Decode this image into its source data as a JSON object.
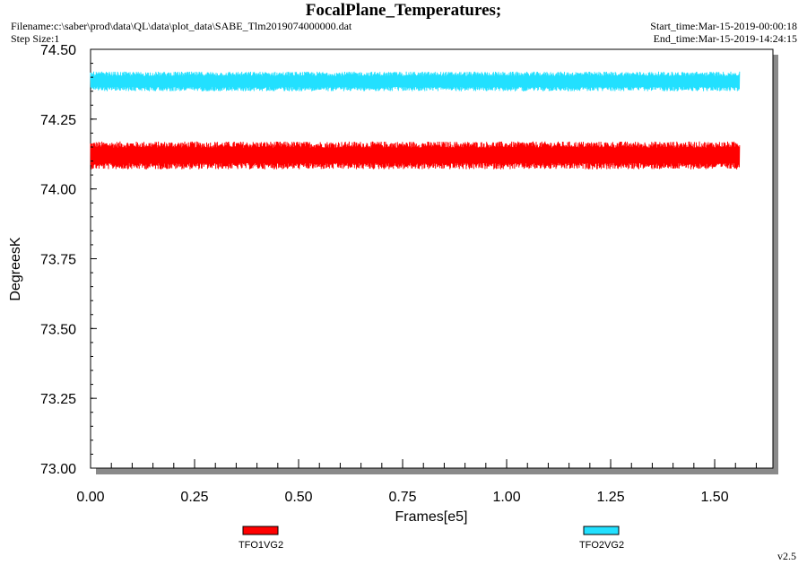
{
  "header": {
    "title": "FocalPlane_Temperatures;",
    "filename": "Filename:c:\\saber\\prod\\data\\QL\\data\\plot_data\\SABE_Tlm2019074000000.dat",
    "step_size": "Step Size:1",
    "start_time": "Start_time:Mar-15-2019-00:00:18",
    "end_time": "End_time:Mar-15-2019-14:24:15"
  },
  "footer": {
    "version": "v2.5"
  },
  "chart_data": {
    "type": "line",
    "title": "FocalPlane_Temperatures;",
    "xlabel": "Frames[e5]",
    "ylabel": "DegreesK",
    "xlim": [
      0.0,
      1.64
    ],
    "ylim": [
      73.0,
      74.5
    ],
    "x_ticks": [
      "0.00",
      "0.25",
      "0.50",
      "0.75",
      "1.00",
      "1.25",
      "1.50"
    ],
    "y_ticks": [
      "74.50",
      "74.25",
      "74.00",
      "73.75",
      "73.50",
      "73.25",
      "73.00"
    ],
    "x_range_data": [
      0.0,
      1.56
    ],
    "grid": false,
    "legend_position": "bottom",
    "series": [
      {
        "name": "TFO1VG2",
        "color": "#ff0000",
        "mean": 74.12,
        "min": 74.07,
        "max": 74.17
      },
      {
        "name": "TFO2VG2",
        "color": "#22e0ff",
        "mean": 74.385,
        "min": 74.35,
        "max": 74.42
      }
    ]
  }
}
